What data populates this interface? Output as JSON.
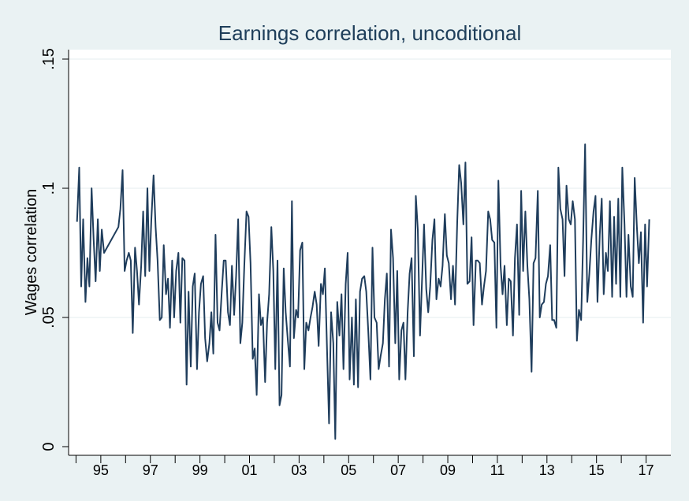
{
  "chart_data": {
    "type": "line",
    "title": "Earnings correlation, uncoditional",
    "xlabel": "",
    "ylabel": "Wages correlation",
    "ylim": [
      0,
      0.15
    ],
    "xlim": [
      1993.7,
      2018.0
    ],
    "yticks": [
      {
        "value": 0,
        "label": "0"
      },
      {
        "value": 0.05,
        "label": ".05"
      },
      {
        "value": 0.1,
        "label": ".1"
      },
      {
        "value": 0.15,
        "label": ".15"
      }
    ],
    "xticks_major": [
      {
        "value": 1995,
        "label": "95"
      },
      {
        "value": 1997,
        "label": "97"
      },
      {
        "value": 1999,
        "label": "99"
      },
      {
        "value": 2001,
        "label": "01"
      },
      {
        "value": 2003,
        "label": "03"
      },
      {
        "value": 2005,
        "label": "05"
      },
      {
        "value": 2007,
        "label": "07"
      },
      {
        "value": 2009,
        "label": "09"
      },
      {
        "value": 2011,
        "label": "11"
      },
      {
        "value": 2013,
        "label": "13"
      },
      {
        "value": 2015,
        "label": "15"
      },
      {
        "value": 2017,
        "label": "17"
      }
    ],
    "xticks_minor": [
      1994,
      1996,
      1998,
      2000,
      2002,
      2004,
      2006,
      2008,
      2010,
      2012,
      2014,
      2016
    ],
    "grid": true,
    "legend": "none",
    "series": [
      {
        "name": "",
        "color": "#1f3d5c",
        "points": [
          [
            1994.04,
            0.087
          ],
          [
            1994.13,
            0.108
          ],
          [
            1994.21,
            0.062
          ],
          [
            1994.29,
            0.088
          ],
          [
            1994.38,
            0.056
          ],
          [
            1994.46,
            0.073
          ],
          [
            1994.54,
            0.062
          ],
          [
            1994.63,
            0.1
          ],
          [
            1994.71,
            0.08
          ],
          [
            1994.79,
            0.064
          ],
          [
            1994.88,
            0.088
          ],
          [
            1994.96,
            0.068
          ],
          [
            1995.04,
            0.084
          ],
          [
            1995.13,
            0.075
          ],
          [
            1995.71,
            0.085
          ],
          [
            1995.79,
            0.092
          ],
          [
            1995.88,
            0.107
          ],
          [
            1995.96,
            0.068
          ],
          [
            1996.04,
            0.072
          ],
          [
            1996.13,
            0.075
          ],
          [
            1996.21,
            0.072
          ],
          [
            1996.29,
            0.044
          ],
          [
            1996.38,
            0.077
          ],
          [
            1996.46,
            0.068
          ],
          [
            1996.54,
            0.055
          ],
          [
            1996.63,
            0.07
          ],
          [
            1996.71,
            0.091
          ],
          [
            1996.79,
            0.066
          ],
          [
            1996.88,
            0.1
          ],
          [
            1996.96,
            0.068
          ],
          [
            1997.04,
            0.088
          ],
          [
            1997.13,
            0.105
          ],
          [
            1997.21,
            0.085
          ],
          [
            1997.29,
            0.072
          ],
          [
            1997.38,
            0.049
          ],
          [
            1997.46,
            0.05
          ],
          [
            1997.54,
            0.078
          ],
          [
            1997.63,
            0.059
          ],
          [
            1997.71,
            0.065
          ],
          [
            1997.79,
            0.046
          ],
          [
            1997.88,
            0.072
          ],
          [
            1997.96,
            0.05
          ],
          [
            1998.04,
            0.068
          ],
          [
            1998.13,
            0.075
          ],
          [
            1998.21,
            0.048
          ],
          [
            1998.29,
            0.073
          ],
          [
            1998.38,
            0.072
          ],
          [
            1998.46,
            0.024
          ],
          [
            1998.54,
            0.06
          ],
          [
            1998.63,
            0.031
          ],
          [
            1998.71,
            0.062
          ],
          [
            1998.79,
            0.067
          ],
          [
            1998.88,
            0.03
          ],
          [
            1998.96,
            0.052
          ],
          [
            1999.04,
            0.063
          ],
          [
            1999.13,
            0.066
          ],
          [
            1999.21,
            0.042
          ],
          [
            1999.29,
            0.033
          ],
          [
            1999.38,
            0.04
          ],
          [
            1999.46,
            0.052
          ],
          [
            1999.54,
            0.036
          ],
          [
            1999.63,
            0.082
          ],
          [
            1999.71,
            0.048
          ],
          [
            1999.79,
            0.045
          ],
          [
            1999.88,
            0.06
          ],
          [
            1999.96,
            0.072
          ],
          [
            2000.04,
            0.072
          ],
          [
            2000.13,
            0.052
          ],
          [
            2000.21,
            0.047
          ],
          [
            2000.29,
            0.07
          ],
          [
            2000.38,
            0.051
          ],
          [
            2000.46,
            0.066
          ],
          [
            2000.54,
            0.088
          ],
          [
            2000.63,
            0.04
          ],
          [
            2000.71,
            0.048
          ],
          [
            2000.79,
            0.07
          ],
          [
            2000.88,
            0.091
          ],
          [
            2000.96,
            0.089
          ],
          [
            2001.04,
            0.071
          ],
          [
            2001.13,
            0.034
          ],
          [
            2001.21,
            0.038
          ],
          [
            2001.29,
            0.02
          ],
          [
            2001.38,
            0.059
          ],
          [
            2001.46,
            0.047
          ],
          [
            2001.54,
            0.05
          ],
          [
            2001.63,
            0.025
          ],
          [
            2001.71,
            0.048
          ],
          [
            2001.79,
            0.059
          ],
          [
            2001.88,
            0.085
          ],
          [
            2001.96,
            0.068
          ],
          [
            2002.04,
            0.03
          ],
          [
            2002.13,
            0.072
          ],
          [
            2002.21,
            0.016
          ],
          [
            2002.29,
            0.02
          ],
          [
            2002.38,
            0.069
          ],
          [
            2002.46,
            0.052
          ],
          [
            2002.54,
            0.042
          ],
          [
            2002.63,
            0.031
          ],
          [
            2002.71,
            0.095
          ],
          [
            2002.79,
            0.042
          ],
          [
            2002.88,
            0.053
          ],
          [
            2002.96,
            0.05
          ],
          [
            2003.04,
            0.076
          ],
          [
            2003.13,
            0.079
          ],
          [
            2003.21,
            0.03
          ],
          [
            2003.29,
            0.048
          ],
          [
            2003.38,
            0.045
          ],
          [
            2003.46,
            0.05
          ],
          [
            2003.54,
            0.054
          ],
          [
            2003.63,
            0.06
          ],
          [
            2003.71,
            0.055
          ],
          [
            2003.79,
            0.039
          ],
          [
            2003.88,
            0.063
          ],
          [
            2003.96,
            0.059
          ],
          [
            2004.04,
            0.069
          ],
          [
            2004.13,
            0.037
          ],
          [
            2004.21,
            0.009
          ],
          [
            2004.29,
            0.052
          ],
          [
            2004.38,
            0.04
          ],
          [
            2004.46,
            0.003
          ],
          [
            2004.54,
            0.056
          ],
          [
            2004.63,
            0.043
          ],
          [
            2004.71,
            0.059
          ],
          [
            2004.79,
            0.03
          ],
          [
            2004.88,
            0.063
          ],
          [
            2004.96,
            0.075
          ],
          [
            2005.04,
            0.026
          ],
          [
            2005.13,
            0.05
          ],
          [
            2005.21,
            0.024
          ],
          [
            2005.29,
            0.057
          ],
          [
            2005.38,
            0.023
          ],
          [
            2005.46,
            0.06
          ],
          [
            2005.54,
            0.065
          ],
          [
            2005.63,
            0.066
          ],
          [
            2005.71,
            0.06
          ],
          [
            2005.79,
            0.045
          ],
          [
            2005.88,
            0.026
          ],
          [
            2005.96,
            0.077
          ],
          [
            2006.04,
            0.05
          ],
          [
            2006.13,
            0.048
          ],
          [
            2006.21,
            0.03
          ],
          [
            2006.29,
            0.035
          ],
          [
            2006.38,
            0.04
          ],
          [
            2006.46,
            0.057
          ],
          [
            2006.54,
            0.067
          ],
          [
            2006.63,
            0.031
          ],
          [
            2006.71,
            0.084
          ],
          [
            2006.79,
            0.073
          ],
          [
            2006.88,
            0.04
          ],
          [
            2006.96,
            0.068
          ],
          [
            2007.04,
            0.026
          ],
          [
            2007.13,
            0.045
          ],
          [
            2007.21,
            0.048
          ],
          [
            2007.29,
            0.026
          ],
          [
            2007.38,
            0.052
          ],
          [
            2007.46,
            0.067
          ],
          [
            2007.54,
            0.073
          ],
          [
            2007.63,
            0.035
          ],
          [
            2007.71,
            0.097
          ],
          [
            2007.79,
            0.084
          ],
          [
            2007.88,
            0.043
          ],
          [
            2007.96,
            0.064
          ],
          [
            2008.04,
            0.086
          ],
          [
            2008.13,
            0.061
          ],
          [
            2008.21,
            0.052
          ],
          [
            2008.29,
            0.062
          ],
          [
            2008.38,
            0.08
          ],
          [
            2008.46,
            0.088
          ],
          [
            2008.54,
            0.057
          ],
          [
            2008.63,
            0.065
          ],
          [
            2008.71,
            0.062
          ],
          [
            2008.79,
            0.07
          ],
          [
            2008.88,
            0.09
          ],
          [
            2008.96,
            0.074
          ],
          [
            2009.04,
            0.071
          ],
          [
            2009.13,
            0.057
          ],
          [
            2009.21,
            0.07
          ],
          [
            2009.29,
            0.055
          ],
          [
            2009.38,
            0.087
          ],
          [
            2009.46,
            0.109
          ],
          [
            2009.54,
            0.102
          ],
          [
            2009.63,
            0.086
          ],
          [
            2009.71,
            0.11
          ],
          [
            2009.79,
            0.063
          ],
          [
            2009.88,
            0.064
          ],
          [
            2009.96,
            0.081
          ],
          [
            2010.04,
            0.047
          ],
          [
            2010.13,
            0.072
          ],
          [
            2010.21,
            0.072
          ],
          [
            2010.29,
            0.071
          ],
          [
            2010.38,
            0.055
          ],
          [
            2010.46,
            0.062
          ],
          [
            2010.54,
            0.068
          ],
          [
            2010.63,
            0.091
          ],
          [
            2010.71,
            0.088
          ],
          [
            2010.79,
            0.08
          ],
          [
            2010.88,
            0.079
          ],
          [
            2010.96,
            0.046
          ],
          [
            2011.04,
            0.103
          ],
          [
            2011.13,
            0.07
          ],
          [
            2011.21,
            0.059
          ],
          [
            2011.29,
            0.07
          ],
          [
            2011.38,
            0.047
          ],
          [
            2011.46,
            0.065
          ],
          [
            2011.54,
            0.064
          ],
          [
            2011.63,
            0.043
          ],
          [
            2011.71,
            0.073
          ],
          [
            2011.79,
            0.086
          ],
          [
            2011.88,
            0.051
          ],
          [
            2011.96,
            0.099
          ],
          [
            2012.04,
            0.068
          ],
          [
            2012.13,
            0.091
          ],
          [
            2012.21,
            0.07
          ],
          [
            2012.29,
            0.057
          ],
          [
            2012.38,
            0.029
          ],
          [
            2012.46,
            0.071
          ],
          [
            2012.54,
            0.073
          ],
          [
            2012.63,
            0.099
          ],
          [
            2012.71,
            0.05
          ],
          [
            2012.79,
            0.055
          ],
          [
            2012.88,
            0.056
          ],
          [
            2012.96,
            0.063
          ],
          [
            2013.04,
            0.066
          ],
          [
            2013.13,
            0.078
          ],
          [
            2013.21,
            0.049
          ],
          [
            2013.29,
            0.049
          ],
          [
            2013.38,
            0.046
          ],
          [
            2013.46,
            0.108
          ],
          [
            2013.54,
            0.092
          ],
          [
            2013.63,
            0.088
          ],
          [
            2013.71,
            0.066
          ],
          [
            2013.79,
            0.101
          ],
          [
            2013.88,
            0.088
          ],
          [
            2013.96,
            0.086
          ],
          [
            2014.04,
            0.095
          ],
          [
            2014.13,
            0.088
          ],
          [
            2014.21,
            0.041
          ],
          [
            2014.29,
            0.053
          ],
          [
            2014.38,
            0.049
          ],
          [
            2014.46,
            0.08
          ],
          [
            2014.54,
            0.117
          ],
          [
            2014.63,
            0.056
          ],
          [
            2014.71,
            0.067
          ],
          [
            2014.79,
            0.08
          ],
          [
            2014.88,
            0.091
          ],
          [
            2014.96,
            0.097
          ],
          [
            2015.04,
            0.056
          ],
          [
            2015.13,
            0.082
          ],
          [
            2015.21,
            0.096
          ],
          [
            2015.29,
            0.059
          ],
          [
            2015.38,
            0.075
          ],
          [
            2015.46,
            0.068
          ],
          [
            2015.54,
            0.095
          ],
          [
            2015.63,
            0.058
          ],
          [
            2015.71,
            0.089
          ],
          [
            2015.79,
            0.063
          ],
          [
            2015.88,
            0.096
          ],
          [
            2015.96,
            0.058
          ],
          [
            2016.04,
            0.108
          ],
          [
            2016.13,
            0.086
          ],
          [
            2016.21,
            0.058
          ],
          [
            2016.29,
            0.082
          ],
          [
            2016.38,
            0.062
          ],
          [
            2016.46,
            0.058
          ],
          [
            2016.54,
            0.104
          ],
          [
            2016.63,
            0.085
          ],
          [
            2016.71,
            0.071
          ],
          [
            2016.79,
            0.083
          ],
          [
            2016.88,
            0.048
          ],
          [
            2016.96,
            0.086
          ],
          [
            2017.04,
            0.062
          ],
          [
            2017.13,
            0.088
          ]
        ]
      }
    ]
  }
}
